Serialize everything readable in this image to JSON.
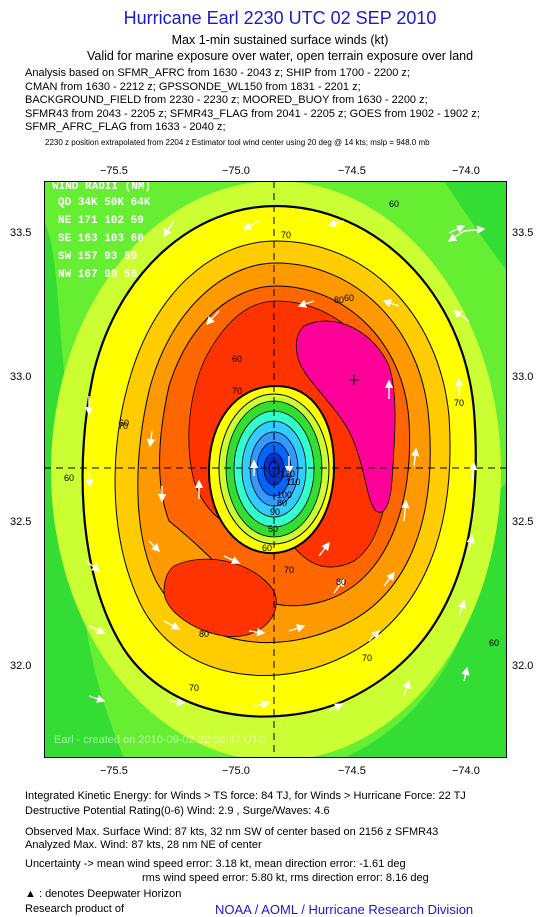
{
  "header": {
    "title": "Hurricane Earl 2230 UTC 02 SEP 2010",
    "subtitle1": "Max 1-min sustained surface winds (kt)",
    "subtitle2": "Valid for marine exposure over water, open terrain exposure over land"
  },
  "analysis_lines": [
    "Analysis based on SFMR_AFRC from 1630 - 2043 z; SHIP from 1700 - 2200 z;",
    "CMAN from 1630 - 2212 z; GPSSONDE_WL150 from 1831 - 2201 z;",
    "BACKGROUND_FIELD from 2230 - 2230 z; MOORED_BUOY from 1630 - 2200 z;",
    "SFMR43 from 2043 - 2205 z; SFMR43_FLAG from 2041 - 2205 z; GOES from 1902 - 1902 z;",
    "SFMR_AFRC_FLAG from 1633 - 2040 z;"
  ],
  "position_note": "2230 z position extrapolated from 2204 z Estimator tool wind center using 20 deg @ 14 kts; mslp = 948.0 mb",
  "map": {
    "lon_ticks": [
      "−75.5",
      "−75.0",
      "−74.5",
      "−74.0"
    ],
    "lat_ticks": [
      "33.5",
      "33.0",
      "32.5",
      "32.0"
    ],
    "wind_radii": {
      "title": "WIND RADII (NM)",
      "header": "QD 34K 50K 64K",
      "rows": [
        "NE  171 102  59",
        "SE  163 103  60",
        "SW 157  93  59",
        "NW 167  99  56"
      ]
    },
    "contour_labels": [
      "60",
      "70",
      "80",
      "60",
      "70",
      "80",
      "90",
      "100",
      "110",
      "120",
      "70",
      "80",
      "70",
      "60",
      "80",
      "70",
      "60",
      "60",
      "70",
      "60",
      "50",
      "60",
      "70"
    ],
    "watermark": "Earl - created on 2010-09-02 22:30:37 UTC",
    "colors": {
      "lt_green": "#33dd33",
      "green": "#66ee33",
      "ylgreen": "#ccff33",
      "yellow": "#ffff00",
      "lt_orange": "#ffcc00",
      "orange": "#ff9900",
      "dk_orange": "#ff6600",
      "red": "#ff3300",
      "magenta": "#ff0099",
      "eye_cyan": "#33ffcc",
      "eye_blue": "#0033cc"
    }
  },
  "footer": {
    "ike_line1": "Integrated Kinetic Energy:  for Winds > TS force: 84 TJ,  for Winds > Hurricane Force: 22 TJ",
    "ike_line2": "Destructive Potential Rating(0-6)   Wind: 2.9 , Surge/Waves: 4.6",
    "obs_line1": "Observed Max. Surface Wind: 87 kts, 32 nm SW of center based on 2156 z SFMR43",
    "obs_line2": "Analyzed Max. Wind: 87 kts, 28 nm NE of center",
    "unc_line1": "Uncertainty -> mean wind speed error: 3.18 kt,   mean direction error:  -1.61 deg",
    "unc_line2": "rms wind speed error: 5.80 kt,   rms direction error: 8.16 deg",
    "dwh_note": ": denotes Deepwater Horizon",
    "research": "Research product of",
    "credit": "NOAA / AOML / Hurricane Research Division"
  }
}
